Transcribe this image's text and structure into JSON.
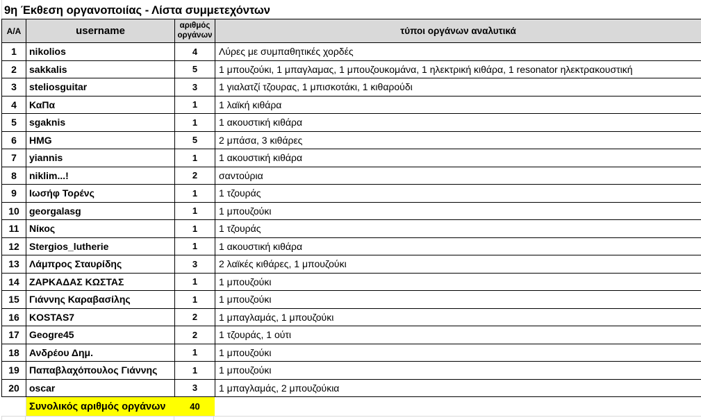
{
  "title": "9η Έκθεση οργανοποιίας - Λίστα συμμετεχόντων",
  "table": {
    "headers": {
      "index": "Α/Α",
      "username": "username",
      "count": "αριθμός οργάνων",
      "details": "τύποι οργάνων αναλυτικά"
    },
    "rows": [
      {
        "index": "1",
        "username": "nikolios",
        "count": "4",
        "details": "Λύρες με συμπαθητικές χορδές"
      },
      {
        "index": "2",
        "username": "sakkalis",
        "count": "5",
        "details": "1 μπουζούκι, 1 μπαγλαμας, 1 μπουζουκομάνα, 1 ηλεκτρική κιθάρα, 1 resonator ηλεκτρακουστική"
      },
      {
        "index": "3",
        "username": "steliosguitar",
        "count": "3",
        "details": "1 γιαλατζί τζουρας, 1 μπισκοτάκι, 1 κιθαρούδι"
      },
      {
        "index": "4",
        "username": "ΚαΠα",
        "count": "1",
        "details": "1 λαϊκή κιθάρα"
      },
      {
        "index": "5",
        "username": "sgaknis",
        "count": "1",
        "details": "1 ακουστική κιθάρα"
      },
      {
        "index": "6",
        "username": "HMG",
        "count": "5",
        "details": "2 μπάσα, 3 κιθάρες"
      },
      {
        "index": "7",
        "username": "yiannis",
        "count": "1",
        "details": "1 ακουστική κιθάρα"
      },
      {
        "index": "8",
        "username": "niklim...!",
        "count": "2",
        "details": "σαντούρια"
      },
      {
        "index": "9",
        "username": "Ιωσήφ Τορένς",
        "count": "1",
        "details": "1 τζουράς"
      },
      {
        "index": "10",
        "username": "georgalasg",
        "count": "1",
        "details": "1 μπουζούκι"
      },
      {
        "index": "11",
        "username": "Νίκος",
        "count": "1",
        "details": "1 τζουράς"
      },
      {
        "index": "12",
        "username": "Stergios_lutherie",
        "count": "1",
        "details": "1 ακουστική κιθάρα"
      },
      {
        "index": "13",
        "username": "Λάμπρος Σταυρίδης",
        "count": "3",
        "details": "2 λαϊκές κιθάρες, 1 μπουζούκι"
      },
      {
        "index": "14",
        "username": "ΖΑΡΚΑΔΑΣ ΚΩΣΤΑΣ",
        "count": "1",
        "details": "1 μπουζούκι"
      },
      {
        "index": "15",
        "username": "Γιάννης Καραβασίλης",
        "count": "1",
        "details": "1 μπουζούκι"
      },
      {
        "index": "16",
        "username": "KOSTAS7",
        "count": "2",
        "details": "1 μπαγλαμάς, 1 μπουζούκι"
      },
      {
        "index": "17",
        "username": "Geogre45",
        "count": "2",
        "details": "1 τζουράς, 1 ούτι"
      },
      {
        "index": "18",
        "username": "Ανδρέου Δημ.",
        "count": "1",
        "details": "1 μπουζούκι"
      },
      {
        "index": "19",
        "username": "Παπαβλαχόπουλος Γιάννης",
        "count": "1",
        "details": "1 μπουζούκι"
      },
      {
        "index": "20",
        "username": "oscar",
        "count": "3",
        "details": "1 μπαγλαμάς, 2 μπουζούκια"
      }
    ],
    "footer": {
      "label": "Συνολικός αριθμός οργάνων",
      "total": "40"
    }
  },
  "colors": {
    "header_bg": "#d9d9d9",
    "total_highlight": "#ffff00",
    "table_border": "#000000",
    "gridline": "#d9d9d9",
    "text": "#000000"
  }
}
